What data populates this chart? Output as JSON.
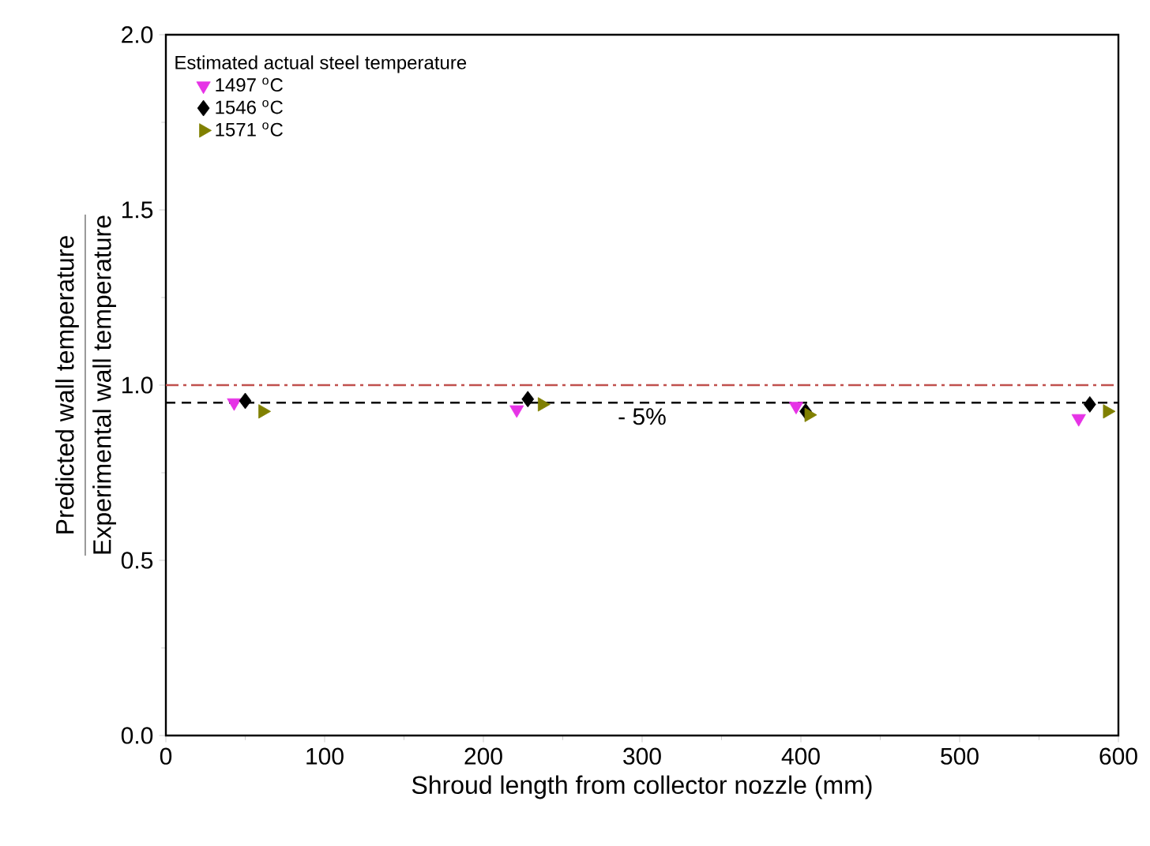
{
  "chart_data": {
    "type": "scatter",
    "xlabel": "Shroud length from collector nozzle (mm)",
    "ylabel": "\\frac{\\mbox{Predicted wall temperature}}{\\mbox{Experimental wall temperature}}",
    "legend_title": "Estimated actual steel temperature",
    "legend": "top left",
    "xlim": [
      0,
      600
    ],
    "xticks": [
      0,
      100,
      200,
      300,
      400,
      500,
      600
    ],
    "ylim": [
      0,
      2
    ],
    "yticks": [
      {
        "value": 0,
        "label": "0.0"
      },
      {
        "value": 0.5,
        "label": "0.5"
      },
      {
        "value": 1,
        "label": "1.0"
      },
      {
        "value": 1.5,
        "label": "1.5"
      },
      {
        "value": 2,
        "label": "2.0"
      }
    ],
    "grid": false,
    "series": [
      {
        "name": "1497 $^{o}$C",
        "color": "#e633e6",
        "marker": "triangle down",
        "x": [
          43,
          221,
          397,
          575
        ],
        "values": [
          0.95,
          0.93,
          0.94,
          0.905
        ]
      },
      {
        "name": "1546 $^{o}$C",
        "color": "#000000",
        "marker": "diamond",
        "x": [
          50,
          228,
          403,
          582
        ],
        "values": [
          0.955,
          0.96,
          0.925,
          0.945
        ]
      },
      {
        "name": "1571 $^{o}$C",
        "color": "#808000",
        "marker": "triangle right",
        "x": [
          61,
          237,
          405,
          593
        ],
        "values": [
          0.925,
          0.945,
          0.915,
          0.925
        ]
      }
    ],
    "ref_lines": [
      {
        "axis": "y",
        "value": 1.0,
        "color": "#c0504d",
        "line_style": "dashdot"
      },
      {
        "axis": "y",
        "value": 0.95,
        "color": "#000000",
        "line_style": "dashed"
      }
    ],
    "annotations": [
      {
        "text": "- 5%",
        "x": 300,
        "y": 0.95
      }
    ]
  }
}
